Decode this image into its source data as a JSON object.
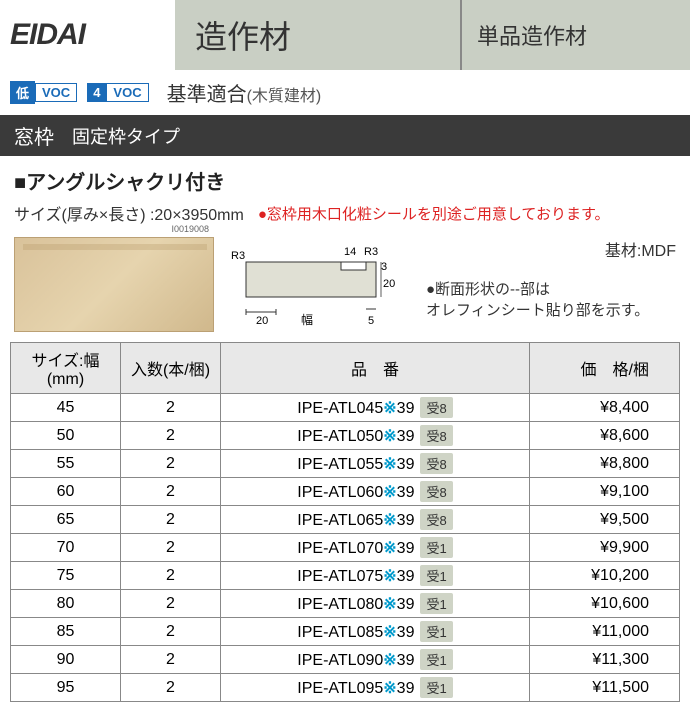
{
  "header": {
    "logo": "EIDAI",
    "title1": "造作材",
    "title2": "単品造作材"
  },
  "voc": {
    "badge1_prefix": "低",
    "badge1_text": "VOC",
    "badge2_prefix": "4",
    "badge2_text": "VOC",
    "compliance": "基準適合",
    "compliance_note": "(木質建材)"
  },
  "section": {
    "title": "窓枠",
    "subtitle": "固定枠タイプ"
  },
  "product": {
    "subtitle": "■アングルシャクリ付き",
    "size_label": "サイズ(厚み×長さ) :20×3950mm",
    "size_note": "●窓枠用木口化粧シールを別途ご用意しております。",
    "wood_id": "I0019008",
    "substrate": "基材:MDF",
    "shape_note1": "●断面形状の--部は",
    "shape_note2": "オレフィンシート貼り部を示す。"
  },
  "diagram": {
    "r_label": "R3",
    "dim_14": "14",
    "dim_3": "3",
    "dim_20v": "20",
    "dim_20h": "20",
    "dim_5": "5",
    "width_label": "幅"
  },
  "table": {
    "headers": {
      "size": "サイズ:幅(mm)",
      "qty": "入数(本/梱)",
      "code": "品　番",
      "price": "価　格/梱"
    },
    "rows": [
      {
        "size": "45",
        "qty": "2",
        "code": "IPE-ATL045",
        "suffix": "39",
        "badge": "受8",
        "price": "¥8,400"
      },
      {
        "size": "50",
        "qty": "2",
        "code": "IPE-ATL050",
        "suffix": "39",
        "badge": "受8",
        "price": "¥8,600"
      },
      {
        "size": "55",
        "qty": "2",
        "code": "IPE-ATL055",
        "suffix": "39",
        "badge": "受8",
        "price": "¥8,800"
      },
      {
        "size": "60",
        "qty": "2",
        "code": "IPE-ATL060",
        "suffix": "39",
        "badge": "受8",
        "price": "¥9,100"
      },
      {
        "size": "65",
        "qty": "2",
        "code": "IPE-ATL065",
        "suffix": "39",
        "badge": "受8",
        "price": "¥9,500"
      },
      {
        "size": "70",
        "qty": "2",
        "code": "IPE-ATL070",
        "suffix": "39",
        "badge": "受1",
        "price": "¥9,900"
      },
      {
        "size": "75",
        "qty": "2",
        "code": "IPE-ATL075",
        "suffix": "39",
        "badge": "受1",
        "price": "¥10,200"
      },
      {
        "size": "80",
        "qty": "2",
        "code": "IPE-ATL080",
        "suffix": "39",
        "badge": "受1",
        "price": "¥10,600"
      },
      {
        "size": "85",
        "qty": "2",
        "code": "IPE-ATL085",
        "suffix": "39",
        "badge": "受1",
        "price": "¥11,000"
      },
      {
        "size": "90",
        "qty": "2",
        "code": "IPE-ATL090",
        "suffix": "39",
        "badge": "受1",
        "price": "¥11,300"
      },
      {
        "size": "95",
        "qty": "2",
        "code": "IPE-ATL095",
        "suffix": "39",
        "badge": "受1",
        "price": "¥11,500"
      }
    ]
  },
  "colors": {
    "header_bg": "#c9cfc4",
    "section_bg": "#3a3a3a",
    "voc_blue": "#1a6bb8",
    "note_red": "#d22",
    "asterisk": "#0099cc",
    "badge_bg": "#cfd4c6"
  }
}
